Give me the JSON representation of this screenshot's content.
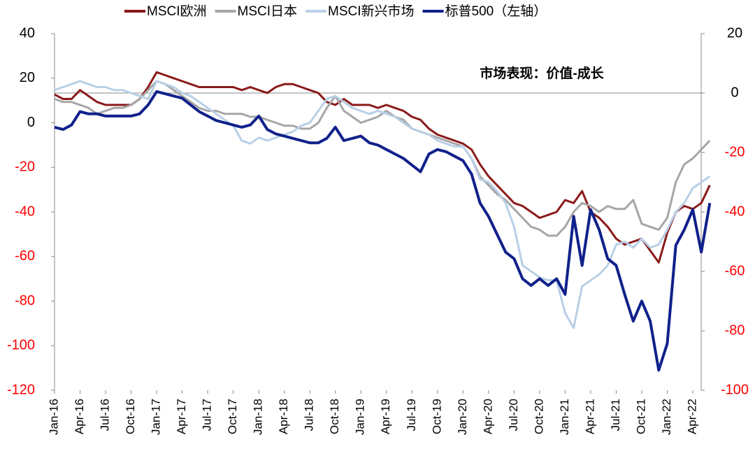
{
  "chart_data": {
    "type": "line",
    "annotation": "市场表现：价值-成长",
    "categories": [
      "Jan-16",
      null,
      null,
      "Apr-16",
      null,
      null,
      "Jul-16",
      null,
      null,
      "Oct-16",
      null,
      null,
      "Jan-17",
      null,
      null,
      "Apr-17",
      null,
      null,
      "Jul-17",
      null,
      null,
      "Oct-17",
      null,
      null,
      "Jan-18",
      null,
      null,
      "Apr-18",
      null,
      null,
      "Jul-18",
      null,
      null,
      "Oct-18",
      null,
      null,
      "Jan-19",
      null,
      null,
      "Apr-19",
      null,
      null,
      "Jul-19",
      null,
      null,
      "Oct-19",
      null,
      null,
      "Jan-20",
      null,
      null,
      "Apr-20",
      null,
      null,
      "Jul-20",
      null,
      null,
      "Oct-20",
      null,
      null,
      "Jan-21",
      null,
      null,
      "Apr-21",
      null,
      null,
      "Jul-21",
      null,
      null,
      "Oct-21",
      null,
      null,
      "Jan-22",
      null,
      null,
      "Apr-22",
      null,
      null
    ],
    "ylim": [
      -120,
      40
    ],
    "yticks": [
      -120,
      -100,
      -80,
      -60,
      -40,
      -20,
      0,
      20,
      40
    ],
    "y2lim": [
      -100,
      20
    ],
    "y2ticks": [
      -100,
      -80,
      -60,
      -40,
      -20,
      0,
      20
    ],
    "negative_tick_color": "#ff0000",
    "series": [
      {
        "name": "MSCI欧洲",
        "color": "#8b1a1a",
        "axis": "y2",
        "values": [
          -0.5,
          -2,
          -2,
          1,
          -1,
          -3,
          -4,
          -4,
          -4,
          -4,
          -2,
          2,
          7,
          6,
          5,
          4,
          3,
          2,
          2,
          2,
          2,
          2,
          1,
          2,
          1,
          0,
          2,
          3,
          3,
          2,
          1,
          0,
          -3,
          -4,
          -2,
          -4,
          -4,
          -4,
          -5,
          -4,
          -5,
          -6,
          -8,
          -9,
          -12,
          -14,
          -15,
          -16,
          -17,
          -19,
          -24,
          -28,
          -31,
          -34,
          -37,
          -38,
          -40,
          -42,
          -41,
          -40,
          -36,
          -37,
          -33,
          -40,
          -42,
          -45,
          -49,
          -51,
          -50,
          -49,
          -53,
          -57,
          -47,
          -40,
          -38,
          -39,
          -37,
          -31
        ]
      },
      {
        "name": "MSCI日本",
        "color": "#a6a6a6",
        "axis": "y2",
        "values": [
          -2,
          -3,
          -3,
          -4,
          -5,
          -7,
          -6,
          -5,
          -5,
          -4,
          -2,
          1,
          4,
          3,
          1,
          -1,
          -3,
          -5,
          -6,
          -6,
          -7,
          -7,
          -7,
          -8,
          -8,
          -9,
          -10,
          -11,
          -11,
          -12,
          -12,
          -10,
          -5,
          -1,
          -6,
          -8,
          -10,
          -9,
          -8,
          -6,
          -8,
          -9,
          -12,
          -13,
          -14,
          -15,
          -16,
          -17,
          -18,
          -22,
          -28,
          -31,
          -34,
          -36,
          -39,
          -42,
          -45,
          -46,
          -48,
          -48,
          -45,
          -40,
          -37,
          -38,
          -40,
          -38,
          -39,
          -39,
          -36,
          -44,
          -45,
          -46,
          -42,
          -30,
          -24,
          -22,
          -19,
          -16
        ]
      },
      {
        "name": "MSCI新兴市场",
        "color": "#b8cfe6",
        "axis": "y2",
        "values": [
          1,
          2,
          3,
          4,
          3,
          2,
          2,
          1,
          1,
          0,
          -1,
          -2,
          4,
          3,
          2,
          0,
          -1,
          -3,
          -5,
          -7,
          -9,
          -11,
          -16,
          -17,
          -15,
          -16,
          -15,
          -14,
          -13,
          -11,
          -10,
          -6,
          -2,
          -1,
          -3,
          -5,
          -6,
          -7,
          -6,
          -7,
          -8,
          -10,
          -12,
          -13,
          -14,
          -16,
          -17,
          -18,
          -18,
          -22,
          -29,
          -30,
          -33,
          -37,
          -45,
          -58,
          -60,
          -62,
          -63,
          -63,
          -74,
          -79,
          -65,
          -63,
          -61,
          -58,
          -51,
          -50,
          -52,
          -49,
          -52,
          -51,
          -46,
          -40,
          -37,
          -32,
          -30,
          -28
        ]
      },
      {
        "name": "标普500（左轴）",
        "color": "#10218b",
        "axis": "y",
        "values": [
          -2,
          -3,
          -1,
          5,
          4,
          4,
          3,
          3,
          3,
          3,
          4,
          8,
          14,
          13,
          12,
          11,
          8,
          5,
          3,
          1,
          0,
          -1,
          -2,
          -1,
          3,
          -3,
          -5,
          -6,
          -7,
          -8,
          -9,
          -9,
          -7,
          -2,
          -8,
          -7,
          -6,
          -9,
          -10,
          -12,
          -14,
          -16,
          -19,
          -22,
          -14,
          -12,
          -13,
          -15,
          -17,
          -23,
          -36,
          -42,
          -50,
          -58,
          -61,
          -70,
          -73,
          -70,
          -73,
          -70,
          -77,
          -42,
          -64,
          -39,
          -48,
          -61,
          -64,
          -77,
          -89,
          -80,
          -89,
          -111,
          -99,
          -55,
          -48,
          -39,
          -58,
          -36
        ]
      }
    ]
  }
}
